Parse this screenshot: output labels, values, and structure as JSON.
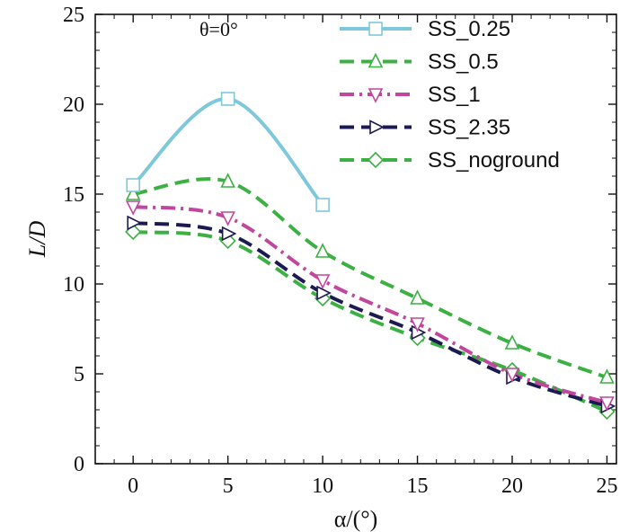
{
  "chart_data": {
    "type": "line",
    "title": "",
    "annotation": "θ=0°",
    "xlabel": "α/(°)",
    "ylabel": "L/D",
    "xlim": [
      -2,
      25.5
    ],
    "ylim": [
      0,
      25
    ],
    "xticks": [
      0,
      5,
      10,
      15,
      20,
      25
    ],
    "yticks": [
      0,
      5,
      10,
      15,
      20,
      25
    ],
    "grid": false,
    "legend_position": "top-right",
    "series": [
      {
        "name": "SS_0.25",
        "color": "#7ec8dc",
        "dash": "solid",
        "marker": "square",
        "x": [
          0,
          5,
          10
        ],
        "y": [
          15.5,
          20.3,
          14.4
        ]
      },
      {
        "name": "SS_0.5",
        "color": "#3cb043",
        "dash": "dash",
        "marker": "triangle-up",
        "x": [
          0,
          5,
          10,
          15,
          20,
          25
        ],
        "y": [
          15.0,
          15.7,
          11.8,
          9.2,
          6.7,
          4.8
        ]
      },
      {
        "name": "SS_1",
        "color": "#c0479c",
        "dash": "dashdot",
        "marker": "triangle-down",
        "x": [
          0,
          5,
          10,
          15,
          20,
          25
        ],
        "y": [
          14.3,
          13.7,
          10.2,
          7.8,
          5.0,
          3.4
        ]
      },
      {
        "name": "SS_2.35",
        "color": "#1c1a50",
        "dash": "dash",
        "marker": "triangle-right",
        "x": [
          0,
          5,
          10,
          15,
          20,
          25
        ],
        "y": [
          13.4,
          12.8,
          9.5,
          7.3,
          4.8,
          3.2
        ]
      },
      {
        "name": "SS_noground",
        "color": "#3cb043",
        "dash": "dash",
        "marker": "diamond",
        "x": [
          0,
          5,
          10,
          15,
          20,
          25
        ],
        "y": [
          12.9,
          12.4,
          9.2,
          7.0,
          5.2,
          2.9
        ]
      }
    ]
  }
}
